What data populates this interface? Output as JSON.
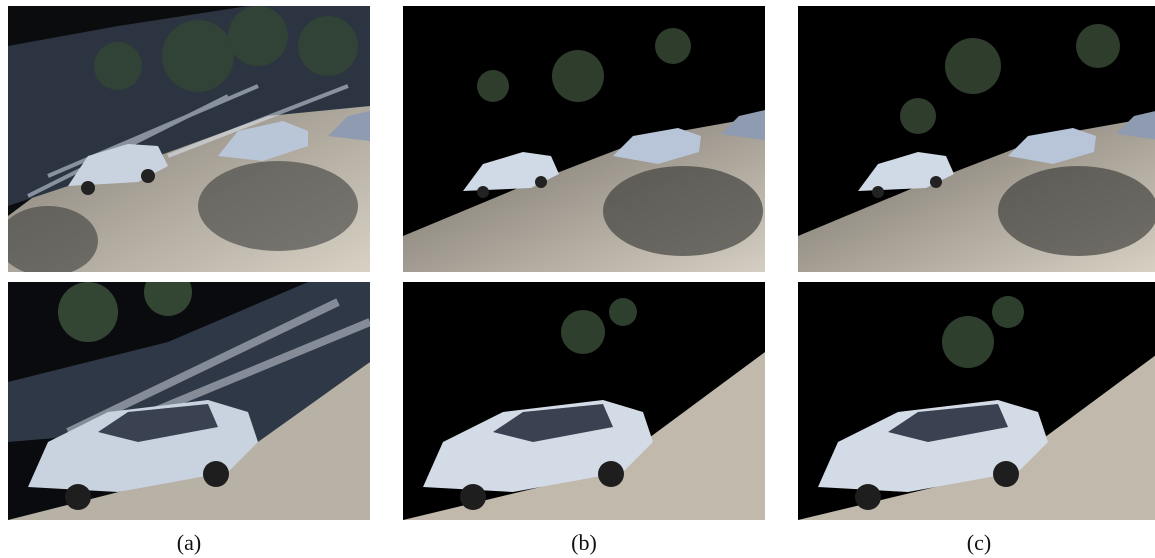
{
  "figure": {
    "columns": [
      {
        "caption": "(a)"
      },
      {
        "caption": "(b)"
      },
      {
        "caption": "(c)"
      }
    ],
    "rows": [
      "overview",
      "close-up"
    ],
    "colors": {
      "background": "#000000",
      "pavement": "#cfc8bb",
      "car_body": "#c9d3e0",
      "foliage": "#2c3a2a"
    }
  }
}
